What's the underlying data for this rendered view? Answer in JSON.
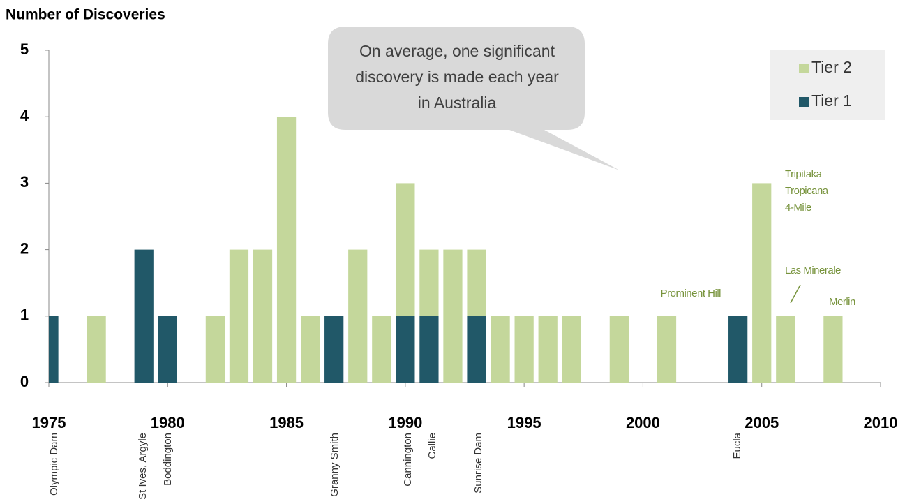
{
  "chart_data": {
    "type": "bar",
    "stacked": true,
    "title": "Number of  Discoveries",
    "x": [
      1975,
      1977,
      1979,
      1980,
      1982,
      1983,
      1984,
      1985,
      1986,
      1987,
      1988,
      1989,
      1990,
      1991,
      1992,
      1993,
      1994,
      1995,
      1996,
      1997,
      1999,
      2001,
      2004,
      2005,
      2006,
      2008
    ],
    "series": [
      {
        "name": "Tier 1",
        "color": "#215868",
        "values": [
          1,
          null,
          2,
          1,
          null,
          null,
          null,
          null,
          null,
          1,
          null,
          null,
          1,
          1,
          null,
          1,
          null,
          null,
          null,
          null,
          null,
          null,
          1,
          null,
          null,
          null
        ]
      },
      {
        "name": "Tier 2",
        "color": "#c4d79b",
        "values": [
          null,
          1,
          null,
          null,
          1,
          2,
          2,
          4,
          1,
          null,
          2,
          1,
          2,
          1,
          2,
          1,
          1,
          1,
          1,
          1,
          1,
          1,
          null,
          3,
          1,
          1
        ]
      }
    ],
    "xlim": [
      1975,
      2010
    ],
    "xticks": [
      1975,
      1980,
      1985,
      1990,
      1995,
      2000,
      2005,
      2010
    ],
    "ylim": [
      0,
      5
    ],
    "yticks": [
      0,
      1,
      2,
      3,
      4,
      5
    ],
    "callout": [
      "On average, one significant",
      "discovery is made each year",
      "in Australia"
    ],
    "axis_names": [
      "Olympic Dam",
      "St Ives, Argyle",
      "Boddington",
      "Granny Smith",
      "Cannington",
      "Callie",
      "Sunrise Dam",
      "Eucla"
    ],
    "bar_names": [
      "Tripitaka",
      "Tropicana",
      "4-Mile",
      "Las Minerale",
      "Prominent Hill",
      "Merlin"
    ],
    "legend_position": "top-right"
  }
}
